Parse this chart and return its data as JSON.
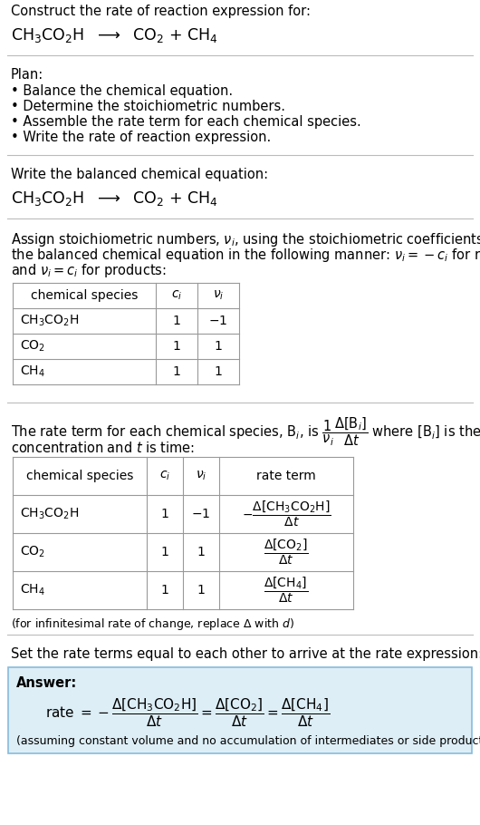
{
  "bg_color": "#ffffff",
  "text_color": "#000000",
  "answer_bg": "#ddeef6",
  "answer_border": "#88bbdd",
  "section1_title": "Construct the rate of reaction expression for:",
  "plan_title": "Plan:",
  "plan_items": [
    "• Balance the chemical equation.",
    "• Determine the stoichiometric numbers.",
    "• Assemble the rate term for each chemical species.",
    "• Write the rate of reaction expression."
  ],
  "balanced_eq_title": "Write the balanced chemical equation:",
  "assign_lines": [
    "Assign stoichiometric numbers, $\\nu_i$, using the stoichiometric coefficients, $c_i$, from",
    "the balanced chemical equation in the following manner: $\\nu_i = -c_i$ for reactants",
    "and $\\nu_i = c_i$ for products:"
  ],
  "table1_headers": [
    "chemical species",
    "$c_i$",
    "$\\nu_i$"
  ],
  "table1_data": [
    [
      "$\\mathrm{CH_3CO_2H}$",
      "1",
      "$-1$"
    ],
    [
      "$\\mathrm{CO_2}$",
      "1",
      "1"
    ],
    [
      "$\\mathrm{CH_4}$",
      "1",
      "1"
    ]
  ],
  "rate_line1": "The rate term for each chemical species, B$_i$, is $\\dfrac{1}{\\nu_i}\\dfrac{\\Delta[\\mathrm{B}_i]}{\\Delta t}$ where [B$_i$] is the amount",
  "rate_line2": "concentration and $t$ is time:",
  "table2_headers": [
    "chemical species",
    "$c_i$",
    "$\\nu_i$",
    "rate term"
  ],
  "table2_data": [
    [
      "$\\mathrm{CH_3CO_2H}$",
      "1",
      "$-1$",
      "$-\\dfrac{\\Delta[\\mathrm{CH_3CO_2H}]}{\\Delta t}$"
    ],
    [
      "$\\mathrm{CO_2}$",
      "1",
      "1",
      "$\\dfrac{\\Delta[\\mathrm{CO_2}]}{\\Delta t}$"
    ],
    [
      "$\\mathrm{CH_4}$",
      "1",
      "1",
      "$\\dfrac{\\Delta[\\mathrm{CH_4}]}{\\Delta t}$"
    ]
  ],
  "infinitesimal_note": "(for infinitesimal rate of change, replace $\\Delta$ with $d$)",
  "set_equal_text": "Set the rate terms equal to each other to arrive at the rate expression:",
  "answer_label": "Answer:",
  "answer_note": "(assuming constant volume and no accumulation of intermediates or side products)"
}
